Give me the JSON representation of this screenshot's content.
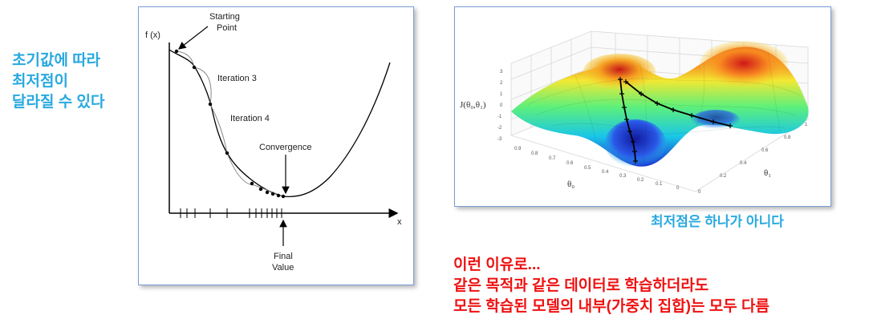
{
  "left_note": [
    "초기값에 따라",
    "최저점이",
    "달라질 수 있다"
  ],
  "gradient_plot": {
    "y_axis_label": "f (x)",
    "x_axis_label": "x",
    "start_label": [
      "Starting",
      "Point"
    ],
    "iteration3_label": "Iteration 3",
    "iteration4_label": "Iteration 4",
    "convergence_label": "Convergence",
    "final_label": [
      "Final",
      "Value"
    ]
  },
  "surface_plot": {
    "z_label": "J(θ₀,θ₁)",
    "theta0_label": "θ₀",
    "theta1_label": "θ₁",
    "z_ticks": [
      "3",
      "2",
      "1",
      "0",
      "-1",
      "-2",
      "-3"
    ],
    "theta0_ticks": [
      "0.9",
      "0.8",
      "0.7",
      "0.6",
      "0.5",
      "0.4",
      "0.3",
      "0.2",
      "0.1",
      "0"
    ],
    "theta1_ticks": [
      "0",
      "0.2",
      "0.4",
      "0.6",
      "0.8",
      "1"
    ]
  },
  "right_caption": "최저점은 하나가 아니다",
  "bottom_note": [
    "이런 이유로...",
    "같은 목적과 같은 데이터로 학습하더라도",
    "모든 학습된 모델의 내부(가중치 집합)는 모두 다름"
  ],
  "colors": {
    "caption_blue": "#29a9e0",
    "note_red": "#ee1111",
    "panel_border": "#7a9cd4"
  }
}
